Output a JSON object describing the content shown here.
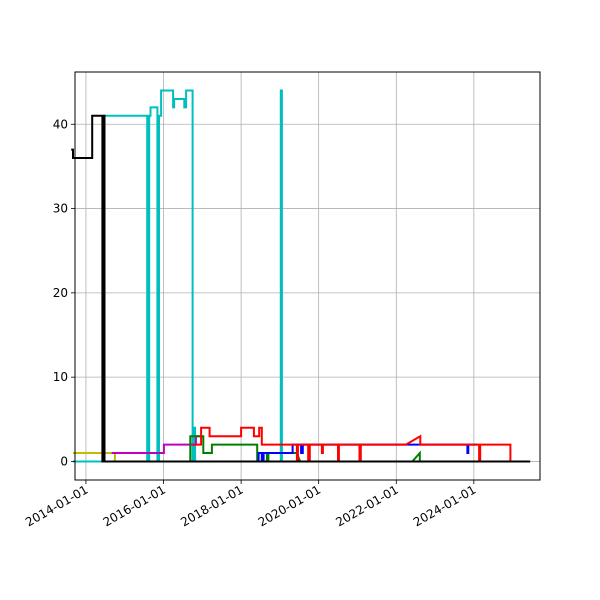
{
  "chart_data": {
    "type": "line",
    "step": true,
    "grid": true,
    "title": "",
    "xlabel": "",
    "ylabel": "",
    "x_axis_type": "date",
    "xlim": [
      "2013-09-20",
      "2025-09-15"
    ],
    "ylim": [
      -2.2,
      46.2
    ],
    "x_ticks": [
      "2014-01-01",
      "2016-01-01",
      "2018-01-01",
      "2020-01-01",
      "2022-01-01",
      "2024-01-01"
    ],
    "y_ticks": [
      0,
      10,
      20,
      30,
      40
    ],
    "series": [
      {
        "color": "#bfbf00",
        "points": [
          [
            "2013-09-01",
            1
          ],
          [
            "2014-10-01",
            1
          ],
          [
            "2014-10-01",
            0
          ],
          [
            "2014-10-15",
            0
          ]
        ]
      },
      {
        "color": "#00bfbf",
        "points": [
          [
            "2013-09-01",
            0
          ],
          [
            "2014-06-15",
            0
          ],
          [
            "2014-06-15",
            41
          ],
          [
            "2015-08-01",
            41
          ],
          [
            "2015-08-01",
            0
          ],
          [
            "2015-08-20",
            0
          ],
          [
            "2015-08-20",
            41
          ],
          [
            "2015-09-01",
            41
          ],
          [
            "2015-09-01",
            42
          ],
          [
            "2015-11-05",
            42
          ],
          [
            "2015-11-05",
            0
          ],
          [
            "2015-11-20",
            0
          ],
          [
            "2015-11-20",
            41
          ],
          [
            "2015-12-10",
            41
          ],
          [
            "2015-12-10",
            44
          ],
          [
            "2016-04-01",
            44
          ],
          [
            "2016-04-01",
            42
          ],
          [
            "2016-04-10",
            42
          ],
          [
            "2016-04-10",
            43
          ],
          [
            "2016-07-15",
            43
          ],
          [
            "2016-07-15",
            42
          ],
          [
            "2016-08-01",
            42
          ],
          [
            "2016-08-01",
            44
          ],
          [
            "2016-10-01",
            44
          ],
          [
            "2016-10-01",
            0
          ],
          [
            "2016-10-15",
            0
          ],
          [
            "2016-10-15",
            4
          ],
          [
            "2016-10-25",
            4
          ],
          [
            "2016-10-25",
            0
          ],
          [
            "2019-01-10",
            0
          ],
          [
            "2019-01-10",
            44
          ],
          [
            "2019-01-20",
            44
          ],
          [
            "2019-01-20",
            0
          ],
          [
            "2019-01-30",
            0
          ]
        ]
      },
      {
        "color": "#bf00bf",
        "points": [
          [
            "2014-09-01",
            1
          ],
          [
            "2016-01-05",
            1
          ],
          [
            "2016-01-05",
            2
          ],
          [
            "2016-11-01",
            2
          ],
          [
            "2016-11-01",
            3
          ],
          [
            "2017-01-01",
            3
          ]
        ]
      },
      {
        "color": "#008000",
        "points": [
          [
            "2016-09-10",
            0
          ],
          [
            "2016-09-10",
            3
          ],
          [
            "2017-01-10",
            3
          ],
          [
            "2017-01-10",
            1
          ],
          [
            "2017-04-01",
            1
          ],
          [
            "2017-04-01",
            2
          ],
          [
            "2018-06-01",
            2
          ],
          [
            "2018-06-01",
            0
          ],
          [
            "2018-06-10",
            0
          ],
          [
            "2018-06-10",
            1
          ],
          [
            "2018-09-01",
            1
          ],
          [
            "2018-09-01",
            0
          ],
          [
            "2018-09-15",
            0
          ],
          [
            "2018-09-15",
            1
          ],
          [
            "2019-06-10",
            1
          ],
          [
            "2019-07-10",
            0
          ],
          [
            "2022-06-01",
            0
          ],
          [
            "2022-08-10",
            1
          ],
          [
            "2022-08-10",
            0
          ],
          [
            "2022-08-20",
            0
          ]
        ]
      },
      {
        "color": "#0000ff",
        "points": [
          [
            "2018-06-15",
            0
          ],
          [
            "2018-06-15",
            1
          ],
          [
            "2018-07-15",
            1
          ],
          [
            "2018-07-15",
            0
          ],
          [
            "2018-08-01",
            0
          ],
          [
            "2018-08-01",
            1
          ],
          [
            "2019-05-01",
            1
          ],
          [
            "2019-05-01",
            2
          ],
          [
            "2019-07-20",
            2
          ],
          [
            "2019-07-20",
            1
          ],
          [
            "2019-08-05",
            1
          ],
          [
            "2019-08-05",
            2
          ],
          [
            "2023-11-01",
            2
          ],
          [
            "2023-11-01",
            1
          ],
          [
            "2023-11-10",
            1
          ],
          [
            "2023-11-10",
            2
          ],
          [
            "2024-02-01",
            2
          ]
        ]
      },
      {
        "color": "#ff0000",
        "points": [
          [
            "2016-10-01",
            2
          ],
          [
            "2016-12-20",
            2
          ],
          [
            "2016-12-20",
            4
          ],
          [
            "2017-03-10",
            4
          ],
          [
            "2017-03-10",
            3
          ],
          [
            "2018-01-01",
            3
          ],
          [
            "2018-01-01",
            4
          ],
          [
            "2018-05-01",
            4
          ],
          [
            "2018-05-01",
            3
          ],
          [
            "2018-06-20",
            3
          ],
          [
            "2018-06-20",
            4
          ],
          [
            "2018-07-15",
            4
          ],
          [
            "2018-07-15",
            2
          ],
          [
            "2019-06-10",
            2
          ],
          [
            "2019-06-10",
            0
          ],
          [
            "2019-06-20",
            0
          ],
          [
            "2019-06-20",
            2
          ],
          [
            "2019-09-25",
            2
          ],
          [
            "2019-09-25",
            0
          ],
          [
            "2019-10-10",
            0
          ],
          [
            "2019-10-10",
            2
          ],
          [
            "2020-02-01",
            2
          ],
          [
            "2020-02-01",
            1
          ],
          [
            "2020-02-10",
            1
          ],
          [
            "2020-02-10",
            2
          ],
          [
            "2020-07-01",
            2
          ],
          [
            "2020-07-01",
            0
          ],
          [
            "2020-07-10",
            0
          ],
          [
            "2020-07-10",
            2
          ],
          [
            "2021-01-20",
            2
          ],
          [
            "2021-01-20",
            0
          ],
          [
            "2021-02-01",
            0
          ],
          [
            "2021-02-01",
            2
          ],
          [
            "2022-04-01",
            2
          ],
          [
            "2022-08-15",
            3
          ],
          [
            "2022-08-15",
            2
          ],
          [
            "2024-02-20",
            2
          ],
          [
            "2024-02-20",
            0
          ],
          [
            "2024-03-01",
            0
          ],
          [
            "2024-03-01",
            2
          ],
          [
            "2024-12-10",
            2
          ],
          [
            "2024-12-10",
            0
          ],
          [
            "2024-12-20",
            0
          ]
        ]
      },
      {
        "color": "#000000",
        "points": [
          [
            "2013-08-15",
            37
          ],
          [
            "2013-09-01",
            37
          ],
          [
            "2013-09-01",
            36
          ],
          [
            "2014-03-01",
            36
          ],
          [
            "2014-03-01",
            41
          ],
          [
            "2014-06-05",
            41
          ],
          [
            "2014-06-05",
            0
          ],
          [
            "2014-06-20",
            0
          ],
          [
            "2014-06-20",
            41
          ],
          [
            "2014-06-25",
            41
          ],
          [
            "2014-06-25",
            0
          ],
          [
            "2025-06-15",
            0
          ]
        ]
      }
    ]
  }
}
